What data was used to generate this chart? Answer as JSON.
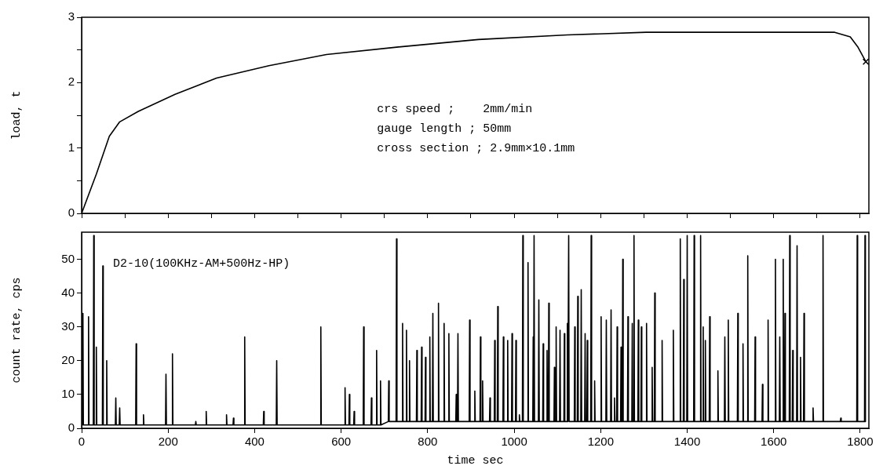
{
  "chart_data": [
    {
      "type": "line",
      "ylabel": "load, t",
      "xlim": [
        0,
        1820
      ],
      "xticks": [
        0,
        100,
        200,
        300,
        400,
        500,
        600,
        700,
        800,
        900,
        1000,
        1100,
        1200,
        1300,
        1400,
        1500,
        1600,
        1700,
        1800
      ],
      "ylim": [
        0,
        3
      ],
      "yticks": [
        0,
        {
          "value": 0.5,
          "label": null
        },
        1,
        {
          "value": 1.5,
          "label": null
        },
        2,
        {
          "value": 2.5,
          "label": null
        },
        3
      ],
      "tick_labels": "y",
      "annotations": [
        "crs speed ;    2mm/min",
        "gauge length ; 50mm",
        "cross section ; 2.9mm×10.1mm"
      ],
      "series": [
        {
          "color": "#000000",
          "x": [
            0,
            34,
            64,
            88,
            131,
            216,
            312,
            433,
            566,
            724,
            917,
            1123,
            1305,
            1547,
            1741,
            1777,
            1795,
            1813
          ],
          "values": [
            0,
            0.6,
            1.18,
            1.4,
            1.56,
            1.82,
            2.07,
            2.26,
            2.43,
            2.54,
            2.66,
            2.73,
            2.77,
            2.77,
            2.77,
            2.7,
            2.54,
            2.32
          ]
        },
        {
          "type": "scatter",
          "marker": "cross",
          "color": "#000000",
          "x": [
            1813
          ],
          "values": [
            2.32
          ]
        }
      ]
    },
    {
      "type": "line",
      "xlabel": "time sec",
      "ylabel": "count rate, cps",
      "xlim": [
        0,
        1820
      ],
      "xticks": [
        0,
        200,
        400,
        600,
        800,
        1000,
        1200,
        1400,
        1600,
        1800
      ],
      "ylim": [
        0,
        58
      ],
      "yticks": [
        0,
        10,
        20,
        30,
        40,
        50
      ],
      "annotations": [
        "D2-10(100KHz-AM+500Hz-HP)"
      ],
      "series": [
        {
          "color": "#000000",
          "x": [
            2,
            3,
            4,
            15,
            16,
            17,
            27,
            28,
            29,
            33,
            34,
            35,
            48,
            49,
            50,
            57,
            58,
            59,
            78,
            79,
            80,
            87,
            88,
            89,
            125,
            126,
            127,
            142,
            143,
            144,
            194,
            195,
            196,
            209,
            210,
            211,
            263,
            264,
            265,
            287,
            288,
            289,
            334,
            335,
            336,
            350,
            351,
            352,
            376,
            377,
            378,
            420,
            421,
            422,
            450,
            451,
            452,
            552,
            553,
            554,
            608,
            609,
            610,
            618,
            619,
            620,
            629,
            630,
            631,
            651,
            652,
            653,
            669,
            670,
            671,
            681,
            682,
            683,
            690,
            691,
            692,
            709,
            710,
            711,
            727,
            728,
            729,
            741,
            742,
            743,
            750,
            751,
            752,
            757,
            758,
            759,
            774,
            775,
            776,
            785,
            786,
            787,
            794,
            795,
            796,
            804,
            805,
            806,
            811,
            812,
            813,
            824,
            825,
            826,
            837,
            838,
            839,
            848,
            849,
            850,
            865,
            866,
            867,
            869,
            870,
            871,
            896,
            897,
            898,
            908,
            909,
            910,
            921,
            922,
            923,
            926,
            927,
            928,
            943,
            944,
            945,
            954,
            955,
            956,
            961,
            962,
            963,
            974,
            975,
            976,
            984,
            985,
            986,
            994,
            995,
            996,
            1003,
            1004,
            1005,
            1011,
            1012,
            1013,
            1019,
            1020,
            1021,
            1031,
            1032,
            1033,
            1043,
            1044,
            1045,
            1045,
            1046,
            1047,
            1056,
            1057,
            1058,
            1066,
            1067,
            1068,
            1075,
            1076,
            1077,
            1079,
            1080,
            1081,
            1092,
            1093,
            1094,
            1096,
            1097,
            1098,
            1105,
            1106,
            1107,
            1115,
            1116,
            1117,
            1122,
            1123,
            1124,
            1125,
            1126,
            1127,
            1139,
            1140,
            1141,
            1146,
            1147,
            1148,
            1154,
            1155,
            1156,
            1163,
            1164,
            1165,
            1168,
            1169,
            1170,
            1177,
            1178,
            1179,
            1185,
            1186,
            1187,
            1200,
            1201,
            1202,
            1212,
            1213,
            1214,
            1223,
            1224,
            1225,
            1231,
            1232,
            1233,
            1237,
            1238,
            1239,
            1246,
            1247,
            1248,
            1250,
            1251,
            1252,
            1262,
            1263,
            1264,
            1272,
            1273,
            1274,
            1276,
            1277,
            1278,
            1286,
            1287,
            1288,
            1293,
            1294,
            1295,
            1305,
            1306,
            1307,
            1318,
            1319,
            1320,
            1324,
            1325,
            1326,
            1341,
            1342,
            1343,
            1367,
            1368,
            1369,
            1383,
            1384,
            1385,
            1391,
            1392,
            1393,
            1399,
            1400,
            1401,
            1415,
            1416,
            1417,
            1430,
            1431,
            1432,
            1436,
            1437,
            1438,
            1441,
            1442,
            1443,
            1451,
            1452,
            1453,
            1470,
            1471,
            1472,
            1486,
            1487,
            1488,
            1494,
            1495,
            1496,
            1516,
            1517,
            1518,
            1528,
            1529,
            1530,
            1539,
            1540,
            1541,
            1556,
            1557,
            1558,
            1573,
            1574,
            1575,
            1586,
            1587,
            1588,
            1603,
            1604,
            1605,
            1613,
            1614,
            1615,
            1621,
            1622,
            1623,
            1625,
            1626,
            1627,
            1636,
            1637,
            1638,
            1643,
            1644,
            1645,
            1653,
            1654,
            1655,
            1661,
            1662,
            1663,
            1669,
            1670,
            1671,
            1690,
            1691,
            1692,
            1713,
            1714,
            1715,
            1754,
            1755,
            1756,
            1792,
            1793,
            1794,
            1810,
            1811,
            1812
          ],
          "values": [
            1,
            34,
            1,
            1,
            33,
            1,
            1,
            57,
            1,
            1,
            24,
            1,
            1,
            48,
            1,
            1,
            20,
            1,
            1,
            9,
            1,
            1,
            6,
            1,
            1,
            25,
            1,
            1,
            4,
            1,
            1,
            16,
            1,
            1,
            22,
            1,
            1,
            2,
            1,
            1,
            5,
            1,
            1,
            4,
            1,
            1,
            3,
            1,
            1,
            27,
            1,
            1,
            5,
            1,
            1,
            20,
            1,
            1,
            30,
            1,
            1,
            12,
            1,
            1,
            10,
            1,
            1,
            5,
            1,
            1,
            30,
            1,
            1,
            9,
            1,
            1,
            23,
            1,
            1,
            14,
            1,
            2,
            14,
            2,
            2,
            56,
            2,
            2,
            31,
            2,
            2,
            29,
            2,
            2,
            20,
            2,
            2,
            23,
            2,
            2,
            24,
            2,
            2,
            21,
            2,
            2,
            27,
            2,
            2,
            34,
            2,
            2,
            37,
            2,
            2,
            31,
            2,
            2,
            28,
            2,
            2,
            10,
            2,
            2,
            28,
            2,
            2,
            32,
            2,
            2,
            11,
            2,
            2,
            27,
            2,
            2,
            14,
            2,
            2,
            9,
            2,
            2,
            26,
            2,
            2,
            36,
            2,
            2,
            27,
            2,
            2,
            26,
            2,
            2,
            28,
            2,
            2,
            26,
            2,
            2,
            4,
            2,
            2,
            57,
            2,
            2,
            49,
            2,
            2,
            27,
            2,
            2,
            57,
            2,
            2,
            38,
            2,
            2,
            25,
            2,
            2,
            23,
            2,
            2,
            37,
            2,
            2,
            18,
            2,
            2,
            30,
            2,
            2,
            29,
            2,
            2,
            28,
            2,
            2,
            31,
            2,
            2,
            57,
            2,
            2,
            30,
            2,
            2,
            39,
            2,
            2,
            41,
            2,
            2,
            28,
            2,
            2,
            26,
            2,
            2,
            57,
            2,
            2,
            14,
            2,
            2,
            33,
            2,
            2,
            32,
            2,
            2,
            35,
            2,
            2,
            9,
            2,
            2,
            30,
            2,
            2,
            24,
            2,
            2,
            50,
            2,
            2,
            33,
            2,
            2,
            31,
            2,
            2,
            57,
            2,
            2,
            32,
            2,
            2,
            30,
            2,
            2,
            31,
            2,
            2,
            18,
            2,
            2,
            40,
            2,
            2,
            26,
            2,
            2,
            29,
            2,
            2,
            56,
            2,
            2,
            44,
            2,
            2,
            57,
            2,
            2,
            57,
            2,
            2,
            57,
            2,
            2,
            30,
            2,
            2,
            26,
            2,
            2,
            33,
            2,
            2,
            17,
            2,
            2,
            27,
            2,
            2,
            32,
            2,
            2,
            34,
            2,
            2,
            25,
            2,
            2,
            51,
            2,
            2,
            27,
            2,
            2,
            13,
            2,
            2,
            32,
            2,
            2,
            50,
            2,
            2,
            27,
            2,
            2,
            50,
            2,
            2,
            34,
            2,
            2,
            57,
            2,
            2,
            23,
            2,
            2,
            54,
            2,
            2,
            21,
            2,
            2,
            34,
            2,
            2,
            6,
            2,
            2,
            57,
            2,
            2,
            3,
            2,
            2,
            57,
            2,
            2,
            57,
            2
          ]
        }
      ]
    }
  ]
}
